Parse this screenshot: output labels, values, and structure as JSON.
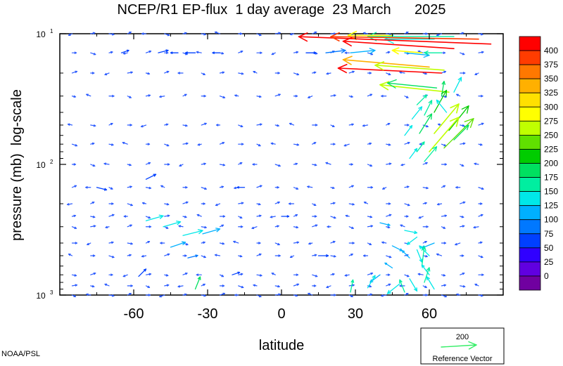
{
  "chart_data": {
    "type": "quiver",
    "title": "NCEP/R1 EP-flux  1 day average  23 March      2025",
    "xlabel": "latitude",
    "ylabel": "pressure (mb)  log-scale",
    "xlim": [
      -90,
      90
    ],
    "ylim": [
      1000,
      10
    ],
    "yscale": "log",
    "xticks": [
      -60,
      -30,
      0,
      30,
      60
    ],
    "xtick_labels": [
      "-60",
      "-30",
      "0",
      "30",
      "60"
    ],
    "yticks": [
      {
        "value": 10,
        "base": "10",
        "exp": "1"
      },
      {
        "value": 100,
        "base": "10",
        "exp": "2"
      },
      {
        "value": 1000,
        "base": "10",
        "exp": "3"
      }
    ],
    "colorbar": {
      "labels": [
        "400",
        "375",
        "350",
        "325",
        "300",
        "275",
        "250",
        "225",
        "200",
        "175",
        "150",
        "125",
        "100",
        "75",
        "50",
        "25",
        "0"
      ],
      "colors": [
        "#ff0000",
        "#ff3c00",
        "#ff7800",
        "#ffb000",
        "#ffe000",
        "#ffff00",
        "#c0ff00",
        "#60e000",
        "#00cc00",
        "#00e060",
        "#00eea0",
        "#00e8e8",
        "#00b0ff",
        "#0078ff",
        "#0040ff",
        "#3000ff",
        "#6000e0",
        "#7000a0"
      ]
    },
    "reference": {
      "value": "200",
      "label": "Reference Vector",
      "color": "#33ee66"
    },
    "notes": {
      "credit": "NOAA/PSL"
    },
    "levels": [
      10,
      14,
      20,
      30,
      50,
      70,
      100,
      150,
      200,
      250,
      300,
      400,
      500,
      700,
      850,
      1000
    ],
    "vectors": [
      {
        "lat": -65,
        "p": 14,
        "u": 3,
        "v": 1,
        "mag": 50
      },
      {
        "lat": -50,
        "p": 14,
        "u": 4,
        "v": 1,
        "mag": 50
      },
      {
        "lat": -42,
        "p": 14,
        "u": -3,
        "v": 0,
        "mag": 50
      },
      {
        "lat": -35,
        "p": 14,
        "u": -4,
        "v": 0,
        "mag": 50
      },
      {
        "lat": -25,
        "p": 14,
        "u": -3,
        "v": 0,
        "mag": 50
      },
      {
        "lat": 10,
        "p": 14,
        "u": 4,
        "v": 0,
        "mag": 50
      },
      {
        "lat": 18,
        "p": 14,
        "u": 8,
        "v": 1,
        "mag": 75
      },
      {
        "lat": 28,
        "p": 14,
        "u": 10,
        "v": 1,
        "mag": 100
      },
      {
        "lat": 50,
        "p": 14,
        "u": 10,
        "v": -1,
        "mag": 100
      },
      {
        "lat": 57,
        "p": 14,
        "u": -12,
        "v": 1,
        "mag": 275
      },
      {
        "lat": 65,
        "p": 14,
        "u": -7,
        "v": 0,
        "mag": 150
      },
      {
        "lat": 62,
        "p": 11,
        "u": -20,
        "v": 0,
        "mag": 125
      },
      {
        "lat": 70,
        "p": 10.5,
        "u": -35,
        "v": 0,
        "mag": 150
      },
      {
        "lat": 45,
        "p": 10.3,
        "u": -18,
        "v": 0,
        "mag": 275
      },
      {
        "lat": 85,
        "p": 12,
        "u": -78,
        "v": 3,
        "mag": 400
      },
      {
        "lat": 80,
        "p": 11,
        "u": -60,
        "v": 1,
        "mag": 375
      },
      {
        "lat": 70,
        "p": 13,
        "u": -45,
        "v": 3,
        "mag": 400
      },
      {
        "lat": 65,
        "p": 20,
        "u": -42,
        "v": 2,
        "mag": 400
      },
      {
        "lat": 60,
        "p": 18,
        "u": -35,
        "v": 3,
        "mag": 325
      },
      {
        "lat": 66,
        "p": 19,
        "u": -28,
        "v": 2,
        "mag": 250
      },
      {
        "lat": 68,
        "p": 28,
        "u": -28,
        "v": 3,
        "mag": 250
      },
      {
        "lat": 63,
        "p": 26,
        "u": -20,
        "v": 2,
        "mag": 175
      },
      {
        "lat": 65,
        "p": 30,
        "u": 1,
        "v": 6,
        "mag": 175
      },
      {
        "lat": 70,
        "p": 28,
        "u": 3,
        "v": 6,
        "mag": 125
      },
      {
        "lat": 55,
        "p": 35,
        "u": 4,
        "v": 4,
        "mag": 150
      },
      {
        "lat": 62,
        "p": 40,
        "u": 5,
        "v": 9,
        "mag": 200
      },
      {
        "lat": 67,
        "p": 40,
        "u": -4,
        "v": 5,
        "mag": 125
      },
      {
        "lat": 58,
        "p": 42,
        "u": 3,
        "v": 6,
        "mag": 150
      },
      {
        "lat": 53,
        "p": 45,
        "u": 4,
        "v": 5,
        "mag": 125
      },
      {
        "lat": 50,
        "p": 60,
        "u": 3,
        "v": 4,
        "mag": 125
      },
      {
        "lat": 56,
        "p": 58,
        "u": 5,
        "v": 8,
        "mag": 175
      },
      {
        "lat": 62,
        "p": 58,
        "u": 10,
        "v": 12,
        "mag": 250
      },
      {
        "lat": 68,
        "p": 55,
        "u": 8,
        "v": 10,
        "mag": 200
      },
      {
        "lat": 60,
        "p": 80,
        "u": 12,
        "v": 14,
        "mag": 250
      },
      {
        "lat": 66,
        "p": 75,
        "u": 12,
        "v": 12,
        "mag": 225
      },
      {
        "lat": 70,
        "p": 65,
        "u": 6,
        "v": 6,
        "mag": 175
      },
      {
        "lat": 55,
        "p": 80,
        "u": 3,
        "v": 4,
        "mag": 150
      },
      {
        "lat": 52,
        "p": 90,
        "u": 3,
        "v": 4,
        "mag": 125
      },
      {
        "lat": 58,
        "p": 95,
        "u": 5,
        "v": 6,
        "mag": 150
      },
      {
        "lat": -55,
        "p": 270,
        "u": 7,
        "v": 2,
        "mag": 125
      },
      {
        "lat": -48,
        "p": 300,
        "u": 7,
        "v": 2,
        "mag": 125
      },
      {
        "lat": -40,
        "p": 350,
        "u": 8,
        "v": 2,
        "mag": 125
      },
      {
        "lat": -32,
        "p": 340,
        "u": 7,
        "v": 2,
        "mag": 100
      },
      {
        "lat": -45,
        "p": 430,
        "u": 6,
        "v": 2,
        "mag": 100
      },
      {
        "lat": -38,
        "p": 520,
        "u": 4,
        "v": 1,
        "mag": 75
      },
      {
        "lat": -58,
        "p": 720,
        "u": 3,
        "v": 3,
        "mag": 50
      },
      {
        "lat": -35,
        "p": 900,
        "u": 2,
        "v": 5,
        "mag": 175
      },
      {
        "lat": 40,
        "p": 280,
        "u": 4,
        "v": -1,
        "mag": 100
      },
      {
        "lat": 50,
        "p": 320,
        "u": 5,
        "v": -1,
        "mag": 125
      },
      {
        "lat": 55,
        "p": 360,
        "u": -4,
        "v": -3,
        "mag": 125
      },
      {
        "lat": 62,
        "p": 400,
        "u": -5,
        "v": -2,
        "mag": 100
      },
      {
        "lat": 45,
        "p": 420,
        "u": 4,
        "v": -2,
        "mag": 100
      },
      {
        "lat": 55,
        "p": 450,
        "u": 2,
        "v": -5,
        "mag": 125
      },
      {
        "lat": 60,
        "p": 500,
        "u": -4,
        "v": 4,
        "mag": 125
      },
      {
        "lat": 52,
        "p": 520,
        "u": -3,
        "v": 3,
        "mag": 100
      },
      {
        "lat": 57,
        "p": 600,
        "u": 1,
        "v": 8,
        "mag": 150
      },
      {
        "lat": 45,
        "p": 620,
        "u": -3,
        "v": 2,
        "mag": 100
      },
      {
        "lat": 60,
        "p": 700,
        "u": -3,
        "v": 4,
        "mag": 125
      },
      {
        "lat": 52,
        "p": 750,
        "u": 3,
        "v": -5,
        "mag": 125
      },
      {
        "lat": 58,
        "p": 800,
        "u": 2,
        "v": 6,
        "mag": 150
      },
      {
        "lat": 48,
        "p": 820,
        "u": -5,
        "v": -4,
        "mag": 125
      },
      {
        "lat": 40,
        "p": 700,
        "u": -4,
        "v": -3,
        "mag": 100
      },
      {
        "lat": 35,
        "p": 880,
        "u": 3,
        "v": 5,
        "mag": 125
      },
      {
        "lat": 62,
        "p": 900,
        "u": -3,
        "v": 5,
        "mag": 125
      },
      {
        "lat": 50,
        "p": 950,
        "u": -2,
        "v": 5,
        "mag": 150
      },
      {
        "lat": 28,
        "p": 950,
        "u": 1,
        "v": 5,
        "mag": 150
      },
      {
        "lat": -75,
        "p": 150,
        "u": 4,
        "v": -1,
        "mag": 50
      },
      {
        "lat": -55,
        "p": 130,
        "u": 4,
        "v": 2,
        "mag": 50
      },
      {
        "lat": -15,
        "p": 150,
        "u": -3,
        "v": 0,
        "mag": 50
      },
      {
        "lat": 15,
        "p": 500,
        "u": 4,
        "v": 0,
        "mag": 50
      },
      {
        "lat": 0,
        "p": 250,
        "u": 3,
        "v": 0,
        "mag": 50
      },
      {
        "lat": -20,
        "p": 700,
        "u": 3,
        "v": 1,
        "mag": 50
      }
    ]
  },
  "page": {
    "title": "NCEP/R1 EP-flux  1 day average  23 March      2025",
    "credit": "NOAA/PSL"
  }
}
